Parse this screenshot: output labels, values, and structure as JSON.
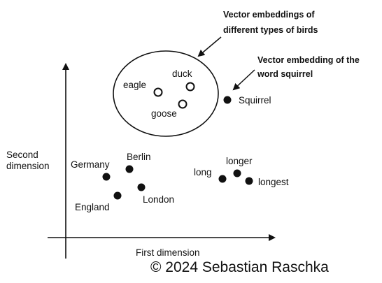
{
  "axes": {
    "x_label": "First dimension",
    "y_label": [
      "Second",
      "dimension"
    ]
  },
  "bird_group": {
    "words": [
      "eagle",
      "duck",
      "goose"
    ],
    "annotation": [
      "Vector embeddings of",
      "different types of birds"
    ]
  },
  "squirrel": {
    "word": "Squirrel",
    "annotation": [
      "Vector embedding of the",
      "word squirrel"
    ]
  },
  "country_group": {
    "words": [
      "Germany",
      "Berlin",
      "England",
      "London"
    ]
  },
  "length_group": {
    "words": [
      "long",
      "longer",
      "longest"
    ]
  },
  "copyright": "© 2024 Sebastian Raschka",
  "colors": {
    "ink": "#111111",
    "background": "#ffffff"
  }
}
